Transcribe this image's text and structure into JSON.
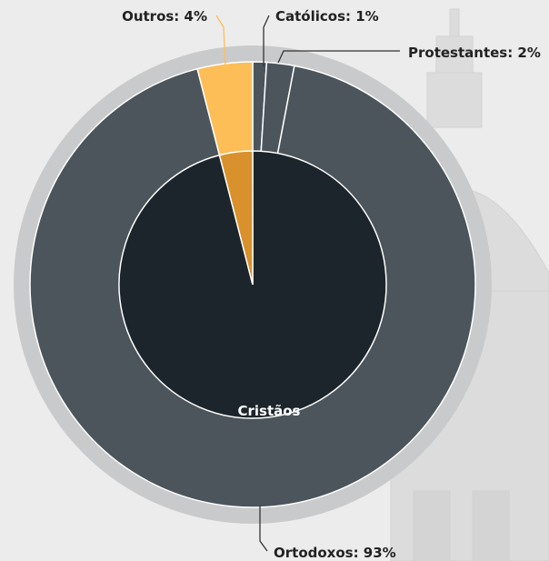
{
  "chart_data": {
    "type": "pie",
    "inner_ring": {
      "label": "Cristãos",
      "slices": [
        {
          "name": "Cristãos",
          "value": 96,
          "color": "#1c252b"
        },
        {
          "name": "",
          "value": 4,
          "color": "#d8912c"
        }
      ]
    },
    "outer_ring": {
      "slices": [
        {
          "name": "Católicos",
          "value": 1,
          "label": "Católicos: 1%",
          "color": "#4b555b"
        },
        {
          "name": "Protestantes",
          "value": 2,
          "label": "Protestantes: 2%",
          "color": "#4b555b"
        },
        {
          "name": "Ortodoxos",
          "value": 93,
          "label": "Ortodoxos: 93%",
          "color": "#4b555b"
        },
        {
          "name": "Outros",
          "value": 4,
          "label": "Outros: 4%",
          "color": "#fdbd57"
        }
      ]
    },
    "halo_color": "#c9cacb",
    "leader_color": "#333333",
    "leader_color_highlight": "#fdbd57"
  }
}
